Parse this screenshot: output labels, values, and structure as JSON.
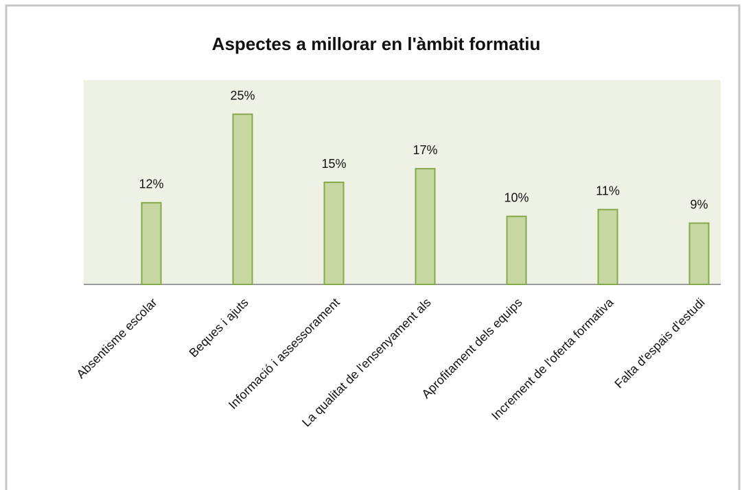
{
  "chart_data": {
    "type": "bar",
    "title": "Aspectes a millorar en l'àmbit formatiu",
    "categories": [
      "Absentisme escolar",
      "Beques i ajuts",
      "Informació i assessorament",
      "La qualitat de l'ensenyament als",
      "Aprofitament dels equips",
      "Increment de l'oferta formativa",
      "Falta d'espais d'estudi"
    ],
    "values": [
      12,
      25,
      15,
      17,
      10,
      11,
      9
    ],
    "value_labels": [
      "12%",
      "25%",
      "15%",
      "17%",
      "10%",
      "11%",
      "9%"
    ],
    "color": "#c6d7a2",
    "ylim": [
      0,
      30
    ],
    "grid": false
  }
}
